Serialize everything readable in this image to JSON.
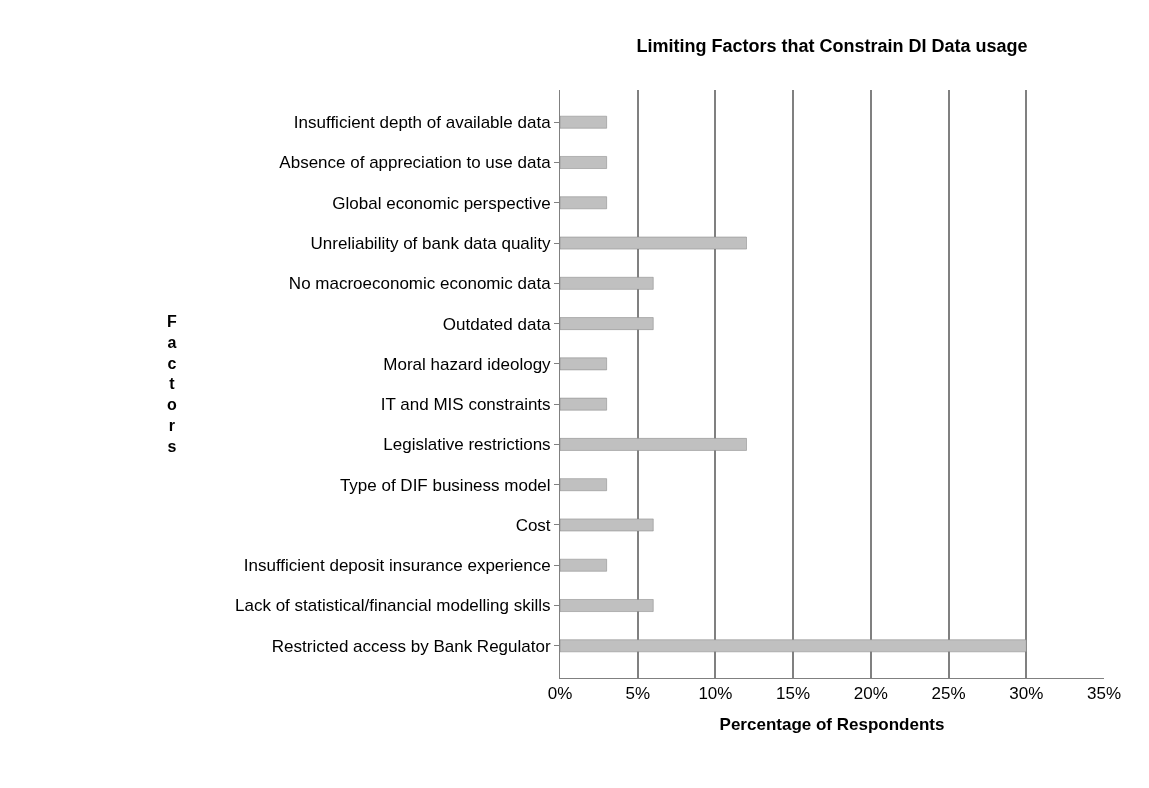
{
  "chart_data": {
    "type": "bar",
    "orientation": "horizontal",
    "title": "Limiting Factors that Constrain DI Data usage",
    "xlabel": "Percentage of Respondents",
    "ylabel": "Factors",
    "categories": [
      "Insufficient depth of available data",
      "Absence of appreciation to use data",
      "Global economic perspective",
      "Unreliability of bank data quality",
      "No macroeconomic economic data",
      "Outdated data",
      "Moral hazard ideology",
      "IT and MIS constraints",
      "Legislative restrictions",
      "Type of DIF business model",
      "Cost",
      "Insufficient deposit insurance experience",
      "Lack of statistical/financial modelling skills",
      "Restricted access by Bank Regulator"
    ],
    "values": [
      3,
      3,
      3,
      12,
      6,
      6,
      3,
      3,
      12,
      3,
      6,
      3,
      6,
      30
    ],
    "color": "#c0c0c0",
    "xlim": [
      0,
      35
    ],
    "xticks": [
      {
        "value": 0,
        "label": "0%"
      },
      {
        "value": 5,
        "label": "5%"
      },
      {
        "value": 10,
        "label": "10%"
      },
      {
        "value": 15,
        "label": "15%"
      },
      {
        "value": 20,
        "label": "20%"
      },
      {
        "value": 25,
        "label": "25%"
      },
      {
        "value": 30,
        "label": "30%"
      },
      {
        "value": 35,
        "label": "35%"
      }
    ],
    "grid": "x",
    "legend": false
  }
}
